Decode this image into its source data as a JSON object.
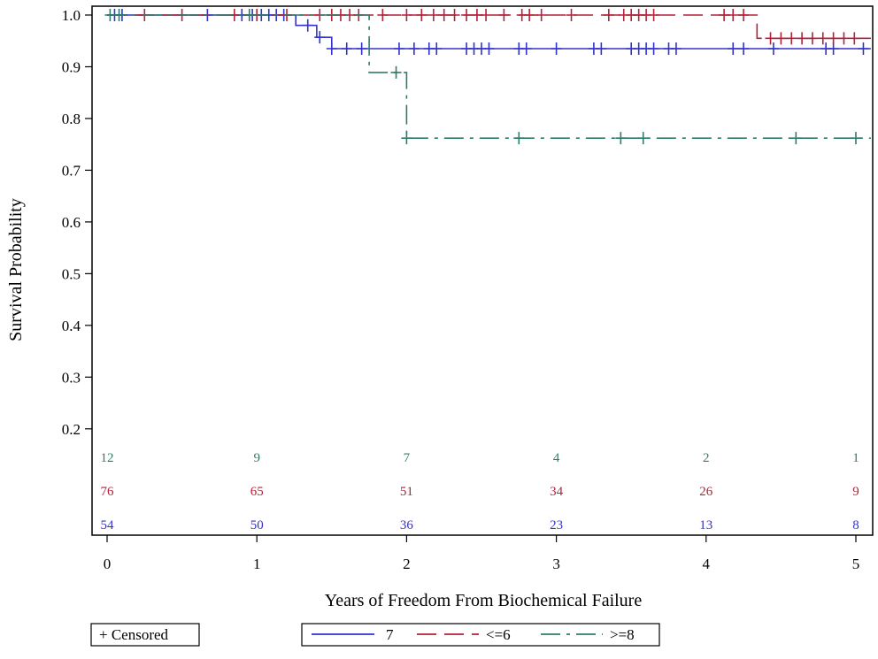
{
  "chart_data": {
    "type": "line",
    "subtype": "kaplan-meier",
    "xlabel": "Years of Freedom From Biochemical Failure",
    "ylabel": "Survival Probability",
    "xlim": [
      0,
      5.1
    ],
    "ylim": [
      0.145,
      1.01
    ],
    "x_ticks": [
      "0",
      "1",
      "2",
      "3",
      "4",
      "5"
    ],
    "y_ticks": [
      "0.2",
      "0.3",
      "0.4",
      "0.5",
      "0.6",
      "0.7",
      "0.8",
      "0.9",
      "1.0"
    ],
    "grid": false,
    "censor_legend": "+ Censored",
    "legend_position": "bottom",
    "series": [
      {
        "name": "7",
        "color": "#3333cc",
        "dash": "solid",
        "steps": [
          [
            0,
            1.0
          ],
          [
            1.26,
            0.98
          ],
          [
            1.4,
            0.957
          ],
          [
            1.5,
            0.935
          ],
          [
            5.1,
            0.935
          ]
        ],
        "censored": [
          [
            0.05,
            1.0
          ],
          [
            0.1,
            1.0
          ],
          [
            0.67,
            1.0
          ],
          [
            0.9,
            1.0
          ],
          [
            0.97,
            1.0
          ],
          [
            1.03,
            1.0
          ],
          [
            1.08,
            1.0
          ],
          [
            1.13,
            1.0
          ],
          [
            1.18,
            1.0
          ],
          [
            1.34,
            0.98
          ],
          [
            1.42,
            0.957
          ],
          [
            1.5,
            0.935
          ],
          [
            1.6,
            0.935
          ],
          [
            1.7,
            0.935
          ],
          [
            1.95,
            0.935
          ],
          [
            2.05,
            0.935
          ],
          [
            2.15,
            0.935
          ],
          [
            2.2,
            0.935
          ],
          [
            2.4,
            0.935
          ],
          [
            2.45,
            0.935
          ],
          [
            2.5,
            0.935
          ],
          [
            2.55,
            0.935
          ],
          [
            2.75,
            0.935
          ],
          [
            2.8,
            0.935
          ],
          [
            3.0,
            0.935
          ],
          [
            3.25,
            0.935
          ],
          [
            3.3,
            0.935
          ],
          [
            3.5,
            0.935
          ],
          [
            3.55,
            0.935
          ],
          [
            3.6,
            0.935
          ],
          [
            3.65,
            0.935
          ],
          [
            3.75,
            0.935
          ],
          [
            3.8,
            0.935
          ],
          [
            4.18,
            0.935
          ],
          [
            4.25,
            0.935
          ],
          [
            4.45,
            0.935
          ],
          [
            4.8,
            0.935
          ],
          [
            4.85,
            0.935
          ],
          [
            5.05,
            0.935
          ]
        ],
        "at_risk": [
          54,
          50,
          36,
          23,
          13,
          8
        ]
      },
      {
        "name": "<=6",
        "color": "#b22238",
        "dash": "long",
        "steps": [
          [
            0,
            1.0
          ],
          [
            4.34,
            0.955
          ],
          [
            5.1,
            0.955
          ]
        ],
        "censored": [
          [
            0.25,
            1.0
          ],
          [
            0.5,
            1.0
          ],
          [
            0.85,
            1.0
          ],
          [
            1.0,
            1.0
          ],
          [
            1.2,
            1.0
          ],
          [
            1.42,
            1.0
          ],
          [
            1.5,
            1.0
          ],
          [
            1.56,
            1.0
          ],
          [
            1.62,
            1.0
          ],
          [
            1.68,
            1.0
          ],
          [
            1.84,
            1.0
          ],
          [
            2.0,
            1.0
          ],
          [
            2.1,
            1.0
          ],
          [
            2.18,
            1.0
          ],
          [
            2.25,
            1.0
          ],
          [
            2.32,
            1.0
          ],
          [
            2.4,
            1.0
          ],
          [
            2.47,
            1.0
          ],
          [
            2.53,
            1.0
          ],
          [
            2.65,
            1.0
          ],
          [
            2.77,
            1.0
          ],
          [
            2.82,
            1.0
          ],
          [
            2.9,
            1.0
          ],
          [
            3.1,
            1.0
          ],
          [
            3.35,
            1.0
          ],
          [
            3.45,
            1.0
          ],
          [
            3.5,
            1.0
          ],
          [
            3.55,
            1.0
          ],
          [
            3.6,
            1.0
          ],
          [
            3.65,
            1.0
          ],
          [
            4.12,
            1.0
          ],
          [
            4.18,
            1.0
          ],
          [
            4.25,
            1.0
          ],
          [
            4.43,
            0.955
          ],
          [
            4.5,
            0.955
          ],
          [
            4.57,
            0.955
          ],
          [
            4.64,
            0.955
          ],
          [
            4.71,
            0.955
          ],
          [
            4.78,
            0.955
          ],
          [
            4.85,
            0.955
          ],
          [
            4.92,
            0.955
          ],
          [
            4.99,
            0.955
          ]
        ],
        "at_risk": [
          76,
          65,
          51,
          34,
          26,
          9
        ]
      },
      {
        "name": ">=8",
        "color": "#2e7d6b",
        "dash": "dashdot",
        "steps": [
          [
            0,
            1.0
          ],
          [
            1.75,
            0.889
          ],
          [
            2.0,
            0.762
          ],
          [
            5.1,
            0.762
          ]
        ],
        "censored": [
          [
            0.02,
            1.0
          ],
          [
            0.08,
            1.0
          ],
          [
            0.95,
            1.0
          ],
          [
            1.93,
            0.889
          ],
          [
            2.0,
            0.762
          ],
          [
            2.75,
            0.762
          ],
          [
            3.43,
            0.762
          ],
          [
            3.58,
            0.762
          ],
          [
            4.6,
            0.762
          ],
          [
            5.0,
            0.762
          ]
        ],
        "at_risk": [
          12,
          9,
          7,
          4,
          2,
          1
        ]
      }
    ]
  }
}
